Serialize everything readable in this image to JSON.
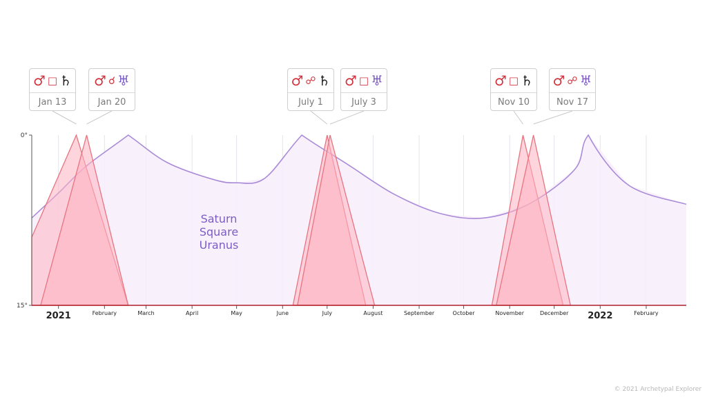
{
  "colors": {
    "mars": "#d2343f",
    "saturn": "#222222",
    "uranus": "#7b5cc4",
    "aspect": "#d2343f",
    "saturn_uranus_line": "#a98ad8",
    "saturn_uranus_fill": "#f7eefc",
    "transit_fill": "#ffb3c1",
    "transit_stroke": "#e8737f"
  },
  "events": [
    {
      "date": "Jan 13",
      "planet1": "♂",
      "aspect": "□",
      "planet2": "♄",
      "planet2_color": "saturn",
      "icons": [
        "mars-icon",
        "square-icon",
        "saturn-icon"
      ]
    },
    {
      "date": "Jan 20",
      "planet1": "♂",
      "aspect": "☌",
      "planet2": "♅",
      "planet2_color": "uranus",
      "icons": [
        "mars-icon",
        "conjunction-icon",
        "uranus-icon"
      ]
    },
    {
      "date": "July 1",
      "planet1": "♂",
      "aspect": "☍",
      "planet2": "♄",
      "planet2_color": "saturn",
      "icons": [
        "mars-icon",
        "opposition-icon",
        "saturn-icon"
      ]
    },
    {
      "date": "July 3",
      "planet1": "♂",
      "aspect": "□",
      "planet2": "♅",
      "planet2_color": "uranus",
      "icons": [
        "mars-icon",
        "square-icon",
        "uranus-icon"
      ]
    },
    {
      "date": "Nov 10",
      "planet1": "♂",
      "aspect": "□",
      "planet2": "♄",
      "planet2_color": "saturn",
      "icons": [
        "mars-icon",
        "square-icon",
        "saturn-icon"
      ]
    },
    {
      "date": "Nov 17",
      "planet1": "♂",
      "aspect": "☍",
      "planet2": "♅",
      "planet2_color": "uranus",
      "icons": [
        "mars-icon",
        "opposition-icon",
        "uranus-icon"
      ]
    }
  ],
  "chart_data": {
    "type": "area",
    "x_axis": {
      "start": "2020-12-14",
      "end": "2022-02-28",
      "ticks": [
        {
          "date": "2021-01-01",
          "label": "2021",
          "major": true
        },
        {
          "date": "2021-02-01",
          "label": "February",
          "major": false
        },
        {
          "date": "2021-03-01",
          "label": "March",
          "major": false
        },
        {
          "date": "2021-04-01",
          "label": "April",
          "major": false
        },
        {
          "date": "2021-05-01",
          "label": "May",
          "major": false
        },
        {
          "date": "2021-06-01",
          "label": "June",
          "major": false
        },
        {
          "date": "2021-07-01",
          "label": "July",
          "major": false
        },
        {
          "date": "2021-08-01",
          "label": "August",
          "major": false
        },
        {
          "date": "2021-09-01",
          "label": "September",
          "major": false
        },
        {
          "date": "2021-10-01",
          "label": "October",
          "major": false
        },
        {
          "date": "2021-11-01",
          "label": "November",
          "major": false
        },
        {
          "date": "2021-12-01",
          "label": "December",
          "major": false
        },
        {
          "date": "2022-01-01",
          "label": "2022",
          "major": true
        },
        {
          "date": "2022-02-01",
          "label": "February",
          "major": false
        }
      ]
    },
    "y_axis": {
      "min": 0,
      "max": 15,
      "inverted": true,
      "tick_labels": [
        "0°",
        "15°"
      ]
    },
    "series": [
      {
        "name": "Saturn Square Uranus",
        "label_lines": [
          "Saturn",
          "Square",
          "Uranus"
        ],
        "points": [
          [
            "2020-12-14",
            7.3
          ],
          [
            "2021-01-01",
            5.1
          ],
          [
            "2021-01-20",
            2.7
          ],
          [
            "2021-02-17",
            0.0
          ],
          [
            "2021-03-15",
            2.4
          ],
          [
            "2021-04-15",
            3.9
          ],
          [
            "2021-05-01",
            4.2
          ],
          [
            "2021-05-20",
            3.8
          ],
          [
            "2021-06-14",
            0.0
          ],
          [
            "2021-07-15",
            2.6
          ],
          [
            "2021-08-15",
            5.2
          ],
          [
            "2021-09-15",
            6.9
          ],
          [
            "2021-10-15",
            7.3
          ],
          [
            "2021-11-15",
            6.0
          ],
          [
            "2021-12-15",
            3.0
          ],
          [
            "2021-12-24",
            0.0
          ],
          [
            "2022-01-20",
            4.4
          ],
          [
            "2022-02-28",
            6.1
          ]
        ]
      },
      {
        "name": "",
        "points": [
          [
            "2020-12-14",
            9.0
          ],
          [
            "2021-01-13",
            0.0
          ],
          [
            "2021-02-17",
            15.0
          ]
        ]
      },
      {
        "name": "",
        "points": [
          [
            "2020-12-20",
            15.0
          ],
          [
            "2021-01-20",
            0.0
          ],
          [
            "2021-02-17",
            15.0
          ]
        ]
      },
      {
        "name": "",
        "points": [
          [
            "2021-06-08",
            15.0
          ],
          [
            "2021-07-01",
            0.0
          ],
          [
            "2021-07-27",
            15.0
          ]
        ]
      },
      {
        "name": "",
        "points": [
          [
            "2021-06-11",
            15.0
          ],
          [
            "2021-07-03",
            0.0
          ],
          [
            "2021-08-02",
            15.0
          ]
        ]
      },
      {
        "name": "",
        "points": [
          [
            "2021-10-20",
            15.0
          ],
          [
            "2021-11-10",
            0.0
          ],
          [
            "2021-12-07",
            15.0
          ]
        ]
      },
      {
        "name": "",
        "points": [
          [
            "2021-10-23",
            15.0
          ],
          [
            "2021-11-17",
            0.0
          ],
          [
            "2021-12-12",
            15.0
          ]
        ]
      }
    ]
  },
  "footer": "© 2021 Archetypal Explorer"
}
